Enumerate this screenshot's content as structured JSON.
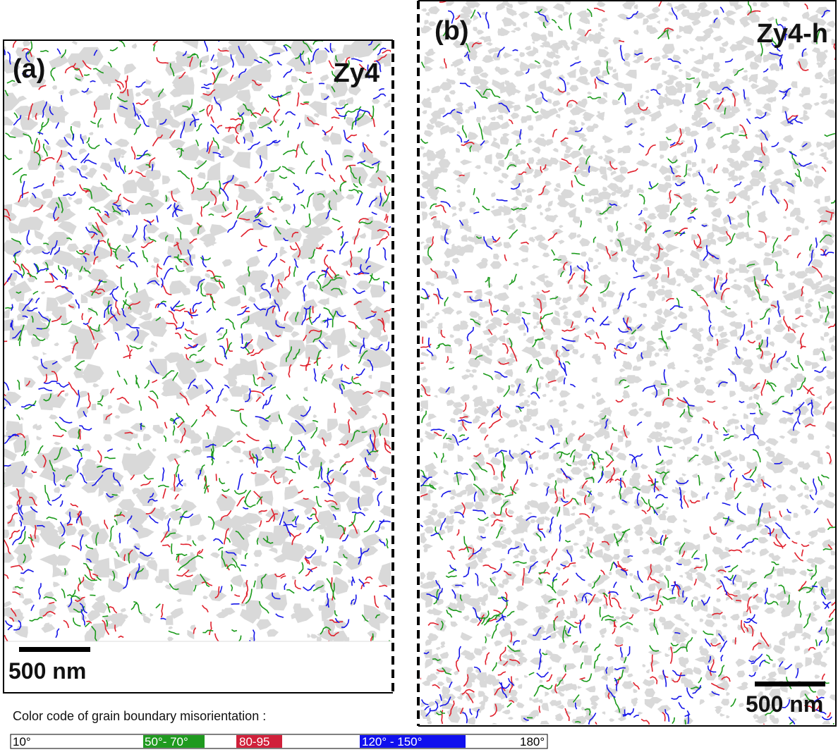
{
  "panels": [
    {
      "label": "(a)",
      "title": "Zy4",
      "scale_bar": "500 nm"
    },
    {
      "label": "(b)",
      "title": "Zy4-h",
      "scale_bar": "500 nm"
    }
  ],
  "legend": {
    "caption": "Color code of grain boundary misorientation :",
    "items": [
      "10°",
      "50°- 70°",
      "80-95",
      "120° - 150°",
      "180°"
    ]
  }
}
